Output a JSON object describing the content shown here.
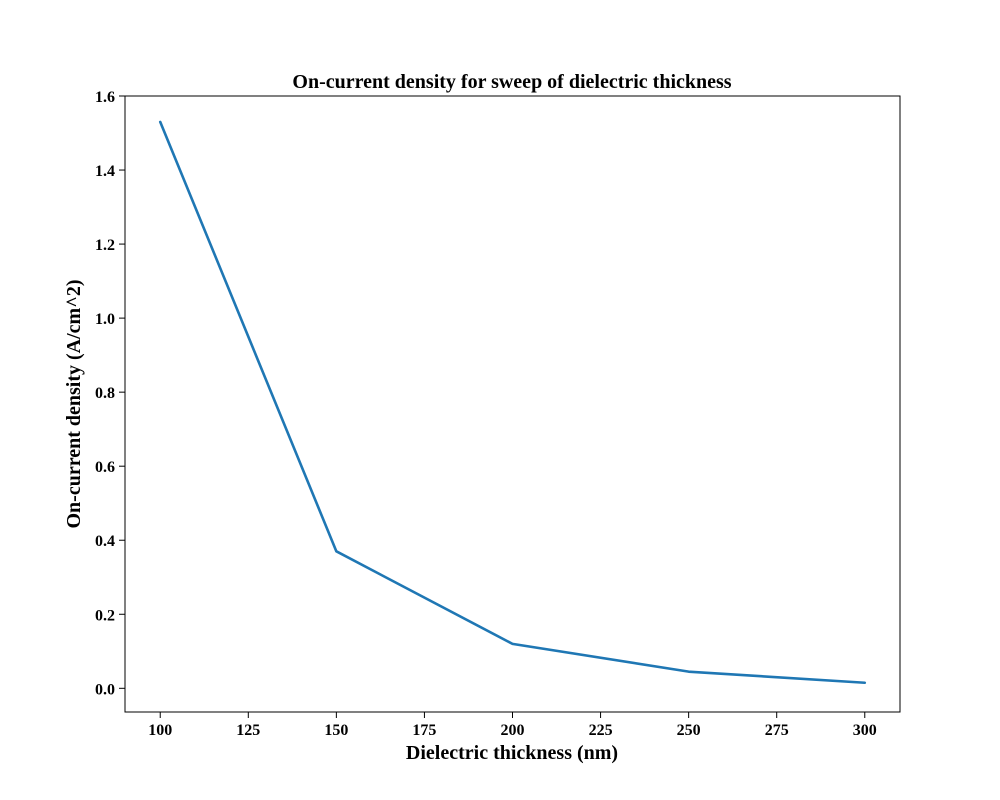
{
  "chart_data": {
    "type": "line",
    "title": "On-current density for sweep of dielectric thickness",
    "xlabel": "Dielectric thickness (nm)",
    "ylabel": "On-current density (A/cm^2)",
    "x": [
      100,
      150,
      200,
      250,
      300
    ],
    "series": [
      {
        "values": [
          1.53,
          0.37,
          0.12,
          0.045,
          0.015
        ],
        "color": "#1f77b4"
      }
    ],
    "xlim": [
      90,
      310
    ],
    "ylim": [
      -0.064,
      1.6
    ],
    "xticks": [
      "100",
      "125",
      "150",
      "175",
      "200",
      "225",
      "250",
      "275",
      "300"
    ],
    "yticks": [
      "0.0",
      "0.2",
      "0.4",
      "0.6",
      "0.8",
      "1.0",
      "1.2",
      "1.4",
      "1.6"
    ],
    "grid": false,
    "legend": "none"
  }
}
